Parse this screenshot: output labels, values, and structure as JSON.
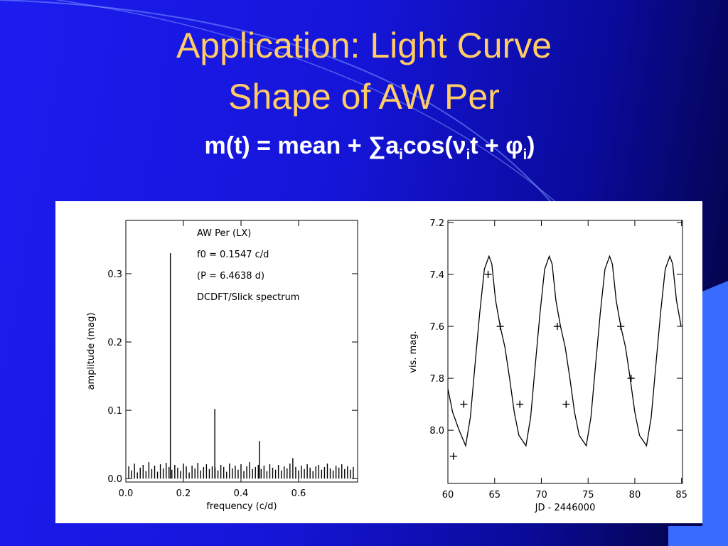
{
  "title": [
    "Application: Light Curve",
    "Shape of AW Per"
  ],
  "formula": [
    "m(t) = mean + ∑a",
    "i",
    "cos(ν",
    "i",
    "t + φ",
    "i",
    ")"
  ],
  "chart_data": [
    {
      "type": "stem",
      "xlabel": "frequency (c/d)",
      "ylabel": "amplitude (mag)",
      "annotations": [
        "AW Per (LX)",
        "f0 = 0.1547 c/d",
        "(P = 6.4638 d)",
        "DCDFT/Slick spectrum"
      ],
      "xlim": [
        0,
        0.805
      ],
      "ylim": [
        -0.005,
        0.378
      ],
      "xticks": [
        {
          "value": 0,
          "label": "0.0"
        },
        0.2,
        0.4,
        0.6
      ],
      "yticks": [
        {
          "value": 0,
          "label": "0.0"
        },
        0.1,
        0.2,
        0.3
      ],
      "color": "#000000",
      "x": [
        0.01,
        0.02,
        0.03,
        0.04,
        0.05,
        0.06,
        0.07,
        0.08,
        0.09,
        0.1,
        0.11,
        0.12,
        0.13,
        0.14,
        0.15,
        0.1547,
        0.16,
        0.17,
        0.18,
        0.19,
        0.2,
        0.21,
        0.22,
        0.23,
        0.24,
        0.25,
        0.26,
        0.27,
        0.28,
        0.29,
        0.3,
        0.309,
        0.31,
        0.32,
        0.33,
        0.34,
        0.35,
        0.36,
        0.37,
        0.38,
        0.39,
        0.4,
        0.41,
        0.42,
        0.43,
        0.44,
        0.45,
        0.46,
        0.464,
        0.47,
        0.48,
        0.49,
        0.5,
        0.51,
        0.52,
        0.53,
        0.54,
        0.55,
        0.56,
        0.57,
        0.58,
        0.59,
        0.6,
        0.61,
        0.62,
        0.63,
        0.64,
        0.65,
        0.66,
        0.67,
        0.68,
        0.69,
        0.7,
        0.71,
        0.72,
        0.73,
        0.74,
        0.75,
        0.76,
        0.77,
        0.78,
        0.79
      ],
      "values": [
        0.018,
        0.012,
        0.022,
        0.009,
        0.016,
        0.02,
        0.011,
        0.024,
        0.014,
        0.019,
        0.01,
        0.021,
        0.015,
        0.023,
        0.017,
        0.33,
        0.013,
        0.02,
        0.016,
        0.011,
        0.022,
        0.018,
        0.009,
        0.019,
        0.015,
        0.023,
        0.012,
        0.017,
        0.021,
        0.014,
        0.018,
        0.102,
        0.016,
        0.012,
        0.02,
        0.017,
        0.01,
        0.022,
        0.015,
        0.019,
        0.013,
        0.021,
        0.011,
        0.018,
        0.024,
        0.014,
        0.017,
        0.02,
        0.055,
        0.014,
        0.019,
        0.011,
        0.021,
        0.016,
        0.013,
        0.02,
        0.012,
        0.018,
        0.015,
        0.022,
        0.03,
        0.017,
        0.012,
        0.019,
        0.014,
        0.021,
        0.016,
        0.011,
        0.018,
        0.02,
        0.013,
        0.017,
        0.022,
        0.015,
        0.012,
        0.019,
        0.016,
        0.021,
        0.014,
        0.018,
        0.013,
        0.017
      ]
    },
    {
      "type": "line",
      "xlabel": "JD - 2446000",
      "ylabel": "vis. mag.",
      "xlim": [
        60,
        85.1
      ],
      "ylim": [
        8.205,
        7.192
      ],
      "xticks": [
        60,
        65,
        70,
        75,
        80,
        85
      ],
      "yticks": [
        7.2,
        7.4,
        7.6,
        7.8,
        {
          "value": 8,
          "label": "8.0"
        }
      ],
      "series": [
        {
          "style": "line",
          "color": "#000000",
          "x": [
            60.0,
            60.5,
            61.2,
            61.9,
            62.4,
            62.9,
            63.4,
            63.9,
            64.4,
            64.7,
            65.1,
            65.6,
            66.1,
            66.6,
            67.1,
            67.6,
            68.35,
            68.85,
            69.35,
            69.85,
            70.35,
            70.85,
            71.15,
            71.55,
            72.05,
            72.55,
            73.05,
            73.55,
            74.05,
            74.8,
            75.3,
            75.8,
            76.3,
            76.8,
            77.3,
            77.6,
            78.0,
            78.5,
            79.0,
            79.5,
            80.0,
            80.5,
            81.25,
            81.75,
            82.25,
            82.75,
            83.25,
            83.75,
            84.05,
            84.45,
            84.95
          ],
          "values": [
            7.84,
            7.93,
            8.0,
            8.06,
            7.95,
            7.75,
            7.55,
            7.38,
            7.33,
            7.36,
            7.5,
            7.6,
            7.68,
            7.8,
            7.93,
            8.02,
            8.06,
            7.95,
            7.75,
            7.55,
            7.38,
            7.33,
            7.36,
            7.5,
            7.6,
            7.68,
            7.8,
            7.93,
            8.02,
            8.06,
            7.95,
            7.75,
            7.55,
            7.38,
            7.33,
            7.36,
            7.5,
            7.6,
            7.68,
            7.8,
            7.93,
            8.02,
            8.06,
            7.95,
            7.75,
            7.55,
            7.38,
            7.33,
            7.36,
            7.5,
            7.6
          ]
        },
        {
          "style": "plus",
          "color": "#000000",
          "x": [
            60.6,
            61.7,
            64.3,
            65.6,
            67.7,
            71.7,
            72.65,
            78.5,
            79.6
          ],
          "values": [
            8.1,
            7.9,
            7.4,
            7.6,
            7.9,
            7.6,
            7.9,
            7.6,
            7.8
          ]
        }
      ]
    }
  ]
}
